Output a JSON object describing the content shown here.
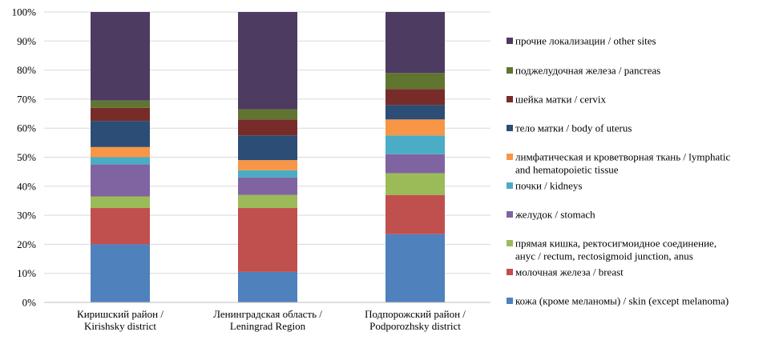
{
  "chart_data": {
    "type": "bar",
    "stacked": "percent",
    "title": "",
    "xlabel": "",
    "ylabel": "",
    "ylim": [
      0,
      100
    ],
    "yticks": [
      "0%",
      "10%",
      "20%",
      "30%",
      "40%",
      "50%",
      "60%",
      "70%",
      "80%",
      "90%",
      "100%"
    ],
    "grid": "horizontal",
    "legend_position": "right",
    "categories": [
      [
        "Киришский район /",
        "Kirishsky district"
      ],
      [
        "Ленинградская область /",
        "Leningrad Region"
      ],
      [
        "Подпорожский район /",
        "Podporozhsky district"
      ]
    ],
    "series": [
      {
        "name": [
          "кожа (кроме меланомы) / skin (except melanoma)"
        ],
        "color": "#4f81bd",
        "values": [
          20.0,
          10.5,
          23.5
        ]
      },
      {
        "name": [
          "молочная железа / breast"
        ],
        "color": "#c0504d",
        "values": [
          12.5,
          22.0,
          13.5
        ]
      },
      {
        "name": [
          "прямая кишка, ректосигмоидное соединение,",
          "анус / rectum, rectosigmoid junction, anus"
        ],
        "color": "#9bbb59",
        "values": [
          4.0,
          4.5,
          7.5
        ]
      },
      {
        "name": [
          "желудок / stomach"
        ],
        "color": "#8064a2",
        "values": [
          11.0,
          6.0,
          6.5
        ]
      },
      {
        "name": [
          "почки / kidneys"
        ],
        "color": "#4bacc6",
        "values": [
          2.5,
          2.5,
          6.5
        ]
      },
      {
        "name": [
          "лимфатическая и кроветворная ткань / lymphatic",
          "and hematopoietic tissue"
        ],
        "color": "#f79646",
        "values": [
          3.5,
          3.5,
          5.5
        ]
      },
      {
        "name": [
          "тело матки / body of uterus"
        ],
        "color": "#2c4d75",
        "values": [
          9.0,
          8.5,
          5.0
        ]
      },
      {
        "name": [
          "шейка матки / cervix"
        ],
        "color": "#772c2a",
        "values": [
          4.5,
          5.5,
          5.5
        ]
      },
      {
        "name": [
          "поджелудочная железа / pancreas"
        ],
        "color": "#5f7530",
        "values": [
          2.5,
          3.5,
          5.5
        ]
      },
      {
        "name": [
          "прочие локализации / other sites"
        ],
        "color": "#4d3b62",
        "values": [
          30.5,
          33.5,
          21.0
        ]
      }
    ]
  }
}
